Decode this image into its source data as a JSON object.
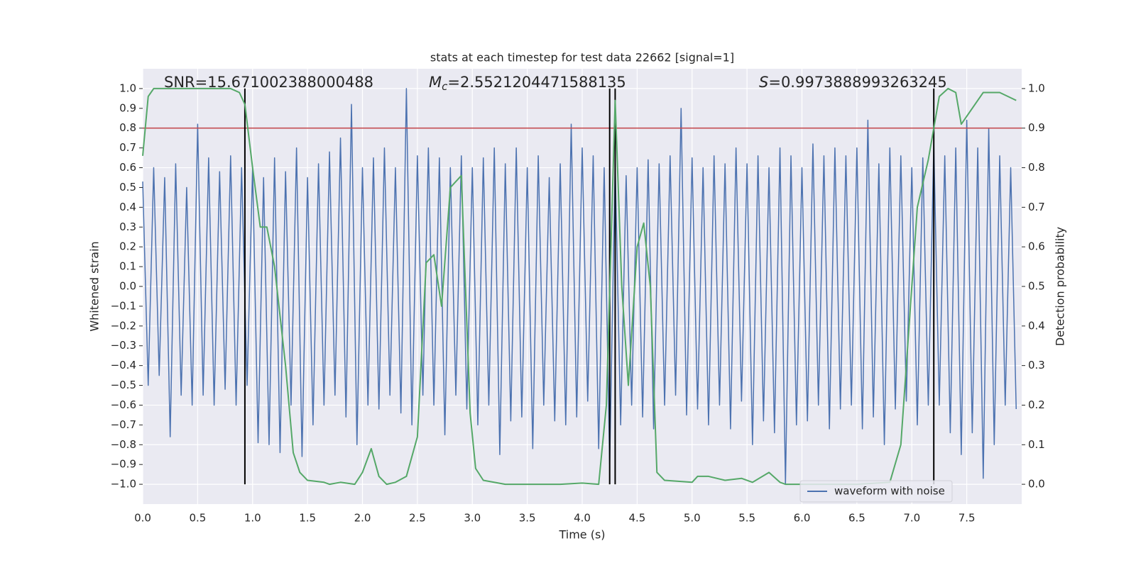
{
  "chart_data": {
    "type": "line",
    "title": "stats at each timestep for test data 22662 [signal=1]",
    "x_label": "Time (s)",
    "y_label": "Whitened strain",
    "y2_label": "Detection probability",
    "xlim": [
      0,
      8
    ],
    "ylim": [
      -1.1,
      1.1
    ],
    "y2lim": [
      -0.05,
      1.05
    ],
    "grid_axes": [
      "x",
      "y2"
    ],
    "legend": "lower right",
    "xticks": [
      {
        "value": 0,
        "label": "0.0"
      },
      {
        "value": 0.5,
        "label": "0.5"
      },
      {
        "value": 1,
        "label": "1.0"
      },
      {
        "value": 1.5,
        "label": "1.5"
      },
      {
        "value": 2,
        "label": "2.0"
      },
      {
        "value": 2.5,
        "label": "2.5"
      },
      {
        "value": 3,
        "label": "3.0"
      },
      {
        "value": 3.5,
        "label": "3.5"
      },
      {
        "value": 4,
        "label": "4.0"
      },
      {
        "value": 4.5,
        "label": "4.5"
      },
      {
        "value": 5,
        "label": "5.0"
      },
      {
        "value": 5.5,
        "label": "5.5"
      },
      {
        "value": 6,
        "label": "6.0"
      },
      {
        "value": 6.5,
        "label": "6.5"
      },
      {
        "value": 7,
        "label": "7.0"
      },
      {
        "value": 7.5,
        "label": "7.5"
      }
    ],
    "yticks": [
      {
        "value": -1,
        "label": "−1.0"
      },
      {
        "value": -0.9,
        "label": "−0.9"
      },
      {
        "value": -0.8,
        "label": "−0.8"
      },
      {
        "value": -0.7,
        "label": "−0.7"
      },
      {
        "value": -0.6,
        "label": "−0.6"
      },
      {
        "value": -0.5,
        "label": "−0.5"
      },
      {
        "value": -0.4,
        "label": "−0.4"
      },
      {
        "value": -0.3,
        "label": "−0.3"
      },
      {
        "value": -0.2,
        "label": "−0.2"
      },
      {
        "value": -0.1,
        "label": "−0.1"
      },
      {
        "value": 0,
        "label": "0.0"
      },
      {
        "value": 0.1,
        "label": "0.1"
      },
      {
        "value": 0.2,
        "label": "0.2"
      },
      {
        "value": 0.3,
        "label": "0.3"
      },
      {
        "value": 0.4,
        "label": "0.4"
      },
      {
        "value": 0.5,
        "label": "0.5"
      },
      {
        "value": 0.6,
        "label": "0.6"
      },
      {
        "value": 0.7,
        "label": "0.7"
      },
      {
        "value": 0.8,
        "label": "0.8"
      },
      {
        "value": 0.9,
        "label": "0.9"
      },
      {
        "value": 1,
        "label": "1.0"
      }
    ],
    "y2ticks": [
      {
        "value": 0,
        "label": "0.0"
      },
      {
        "value": 0.1,
        "label": "0.1"
      },
      {
        "value": 0.2,
        "label": "0.2"
      },
      {
        "value": 0.3,
        "label": "0.3"
      },
      {
        "value": 0.4,
        "label": "0.4"
      },
      {
        "value": 0.5,
        "label": "0.5"
      },
      {
        "value": 0.6,
        "label": "0.6"
      },
      {
        "value": 0.7,
        "label": "0.7"
      },
      {
        "value": 0.8,
        "label": "0.8"
      },
      {
        "value": 0.9,
        "label": "0.9"
      },
      {
        "value": 1,
        "label": "1.0"
      }
    ],
    "annotations": {
      "snr": "SNR=15.671002388000488",
      "mc": {
        "symbol": "M",
        "subscript": "c",
        "text": "=2.5521204471588135"
      },
      "s": {
        "symbol": "S",
        "text": "=0.9973888993263245"
      }
    },
    "hline": {
      "y": 0.8,
      "color": "#c44e52"
    },
    "vlines": {
      "x": [
        0.93,
        4.25,
        4.3,
        7.2
      ],
      "ymin": -1.0,
      "ymax": 1.0,
      "color": "#000000"
    },
    "series": [
      {
        "name": "waveform with noise",
        "color": "#4c72b0",
        "axis": "y",
        "x": [
          0,
          0.05,
          0.1,
          0.15,
          0.2,
          0.25,
          0.3,
          0.35,
          0.4,
          0.45,
          0.5,
          0.55,
          0.6,
          0.65,
          0.7,
          0.75,
          0.8,
          0.85,
          0.9,
          0.95,
          1,
          1.05,
          1.1,
          1.15,
          1.2,
          1.25,
          1.3,
          1.35,
          1.4,
          1.45,
          1.5,
          1.55,
          1.6,
          1.65,
          1.7,
          1.75,
          1.8,
          1.85,
          1.9,
          1.95,
          2,
          2.05,
          2.1,
          2.15,
          2.2,
          2.25,
          2.3,
          2.35,
          2.4,
          2.45,
          2.5,
          2.55,
          2.6,
          2.65,
          2.7,
          2.75,
          2.8,
          2.85,
          2.9,
          2.95,
          3,
          3.05,
          3.1,
          3.15,
          3.2,
          3.25,
          3.3,
          3.35,
          3.4,
          3.45,
          3.5,
          3.55,
          3.6,
          3.65,
          3.7,
          3.75,
          3.8,
          3.85,
          3.9,
          3.95,
          4,
          4.05,
          4.1,
          4.15,
          4.2,
          4.25,
          4.3,
          4.35,
          4.4,
          4.45,
          4.5,
          4.55,
          4.6,
          4.65,
          4.7,
          4.75,
          4.8,
          4.85,
          4.9,
          4.95,
          5,
          5.05,
          5.1,
          5.15,
          5.2,
          5.25,
          5.3,
          5.35,
          5.4,
          5.45,
          5.5,
          5.55,
          5.6,
          5.65,
          5.7,
          5.75,
          5.8,
          5.85,
          5.9,
          5.95,
          6,
          6.05,
          6.1,
          6.15,
          6.2,
          6.25,
          6.3,
          6.35,
          6.4,
          6.45,
          6.5,
          6.55,
          6.6,
          6.65,
          6.7,
          6.75,
          6.8,
          6.85,
          6.9,
          6.95,
          7,
          7.05,
          7.1,
          7.15,
          7.2,
          7.25,
          7.3,
          7.35,
          7.4,
          7.45,
          7.5,
          7.55,
          7.6,
          7.65,
          7.7,
          7.75,
          7.8,
          7.85,
          7.9,
          7.95
        ],
        "values": [
          0.53,
          -0.5,
          0.6,
          -0.45,
          0.55,
          -0.76,
          0.62,
          -0.55,
          0.5,
          -0.6,
          0.82,
          -0.55,
          0.65,
          -0.6,
          0.58,
          -0.52,
          0.66,
          -0.6,
          0.6,
          -0.5,
          0.6,
          -0.79,
          0.55,
          -0.8,
          0.65,
          -0.84,
          0.58,
          -0.6,
          0.7,
          -0.86,
          0.55,
          -0.7,
          0.62,
          -0.6,
          0.68,
          -0.55,
          0.75,
          -0.66,
          0.92,
          -0.8,
          0.6,
          -0.6,
          0.65,
          -0.62,
          0.7,
          -0.55,
          0.6,
          -0.64,
          1.0,
          -0.7,
          0.66,
          -0.55,
          0.7,
          -0.6,
          0.65,
          -0.75,
          0.6,
          -0.55,
          0.66,
          -0.62,
          0.6,
          -0.7,
          0.65,
          -0.6,
          0.7,
          -0.85,
          0.62,
          -0.68,
          0.7,
          -0.66,
          0.6,
          -0.82,
          0.66,
          -0.6,
          0.55,
          -0.68,
          0.62,
          -0.7,
          0.82,
          -0.66,
          0.7,
          -0.58,
          0.66,
          -0.82,
          0.6,
          -0.9,
          0.62,
          -0.7,
          0.56,
          -0.6,
          0.6,
          -0.66,
          0.64,
          -0.72,
          0.62,
          -0.6,
          0.66,
          -0.55,
          0.9,
          -0.65,
          0.65,
          -0.62,
          0.6,
          -0.7,
          0.66,
          -0.6,
          0.62,
          -0.72,
          0.7,
          -0.58,
          0.62,
          -0.8,
          0.66,
          -0.68,
          0.6,
          -0.74,
          0.7,
          -1.0,
          0.66,
          -0.7,
          0.6,
          -0.68,
          0.72,
          -0.6,
          0.66,
          -0.72,
          0.7,
          -0.62,
          0.66,
          -0.6,
          0.7,
          -0.72,
          0.84,
          -0.66,
          0.62,
          -0.8,
          0.7,
          -0.62,
          0.66,
          -0.58,
          0.6,
          -0.7,
          0.65,
          -0.6,
          0.72,
          -0.6,
          0.66,
          -0.74,
          0.7,
          -0.85,
          0.84,
          -0.74,
          0.7,
          -0.97,
          0.8,
          -0.8,
          0.66,
          -0.6,
          0.6,
          -0.62
        ]
      },
      {
        "color": "#55a868",
        "axis": "y2",
        "x": [
          0,
          0.05,
          0.1,
          0.2,
          0.5,
          0.8,
          0.88,
          0.93,
          1,
          1.07,
          1.13,
          1.2,
          1.3,
          1.37,
          1.43,
          1.5,
          1.65,
          1.7,
          1.8,
          1.93,
          2,
          2.08,
          2.15,
          2.22,
          2.3,
          2.4,
          2.5,
          2.58,
          2.65,
          2.72,
          2.8,
          2.9,
          2.98,
          3.03,
          3.1,
          3.3,
          3.5,
          3.8,
          4,
          4.15,
          4.22,
          4.3,
          4.36,
          4.42,
          4.5,
          4.56,
          4.62,
          4.68,
          4.75,
          5,
          5.05,
          5.15,
          5.3,
          5.45,
          5.55,
          5.7,
          5.8,
          5.85,
          6,
          6.5,
          6.8,
          6.9,
          7,
          7.05,
          7.15,
          7.25,
          7.33,
          7.4,
          7.45,
          7.55,
          7.65,
          7.8,
          7.95
        ],
        "values": [
          0.83,
          0.98,
          1.0,
          1.0,
          1.0,
          1.0,
          0.99,
          0.96,
          0.8,
          0.65,
          0.65,
          0.55,
          0.3,
          0.08,
          0.03,
          0.01,
          0.005,
          0.0,
          0.005,
          0.0,
          0.03,
          0.09,
          0.02,
          0.0,
          0.005,
          0.02,
          0.12,
          0.56,
          0.58,
          0.45,
          0.75,
          0.78,
          0.18,
          0.04,
          0.01,
          0.0,
          0.0,
          0.0,
          0.003,
          0.0,
          0.2,
          0.97,
          0.5,
          0.25,
          0.6,
          0.66,
          0.5,
          0.03,
          0.01,
          0.005,
          0.02,
          0.02,
          0.01,
          0.015,
          0.005,
          0.03,
          0.005,
          0.0,
          0.0,
          0.0,
          0.005,
          0.1,
          0.5,
          0.7,
          0.82,
          0.98,
          1.0,
          0.99,
          0.91,
          0.95,
          0.99,
          0.99,
          0.97
        ]
      }
    ]
  }
}
